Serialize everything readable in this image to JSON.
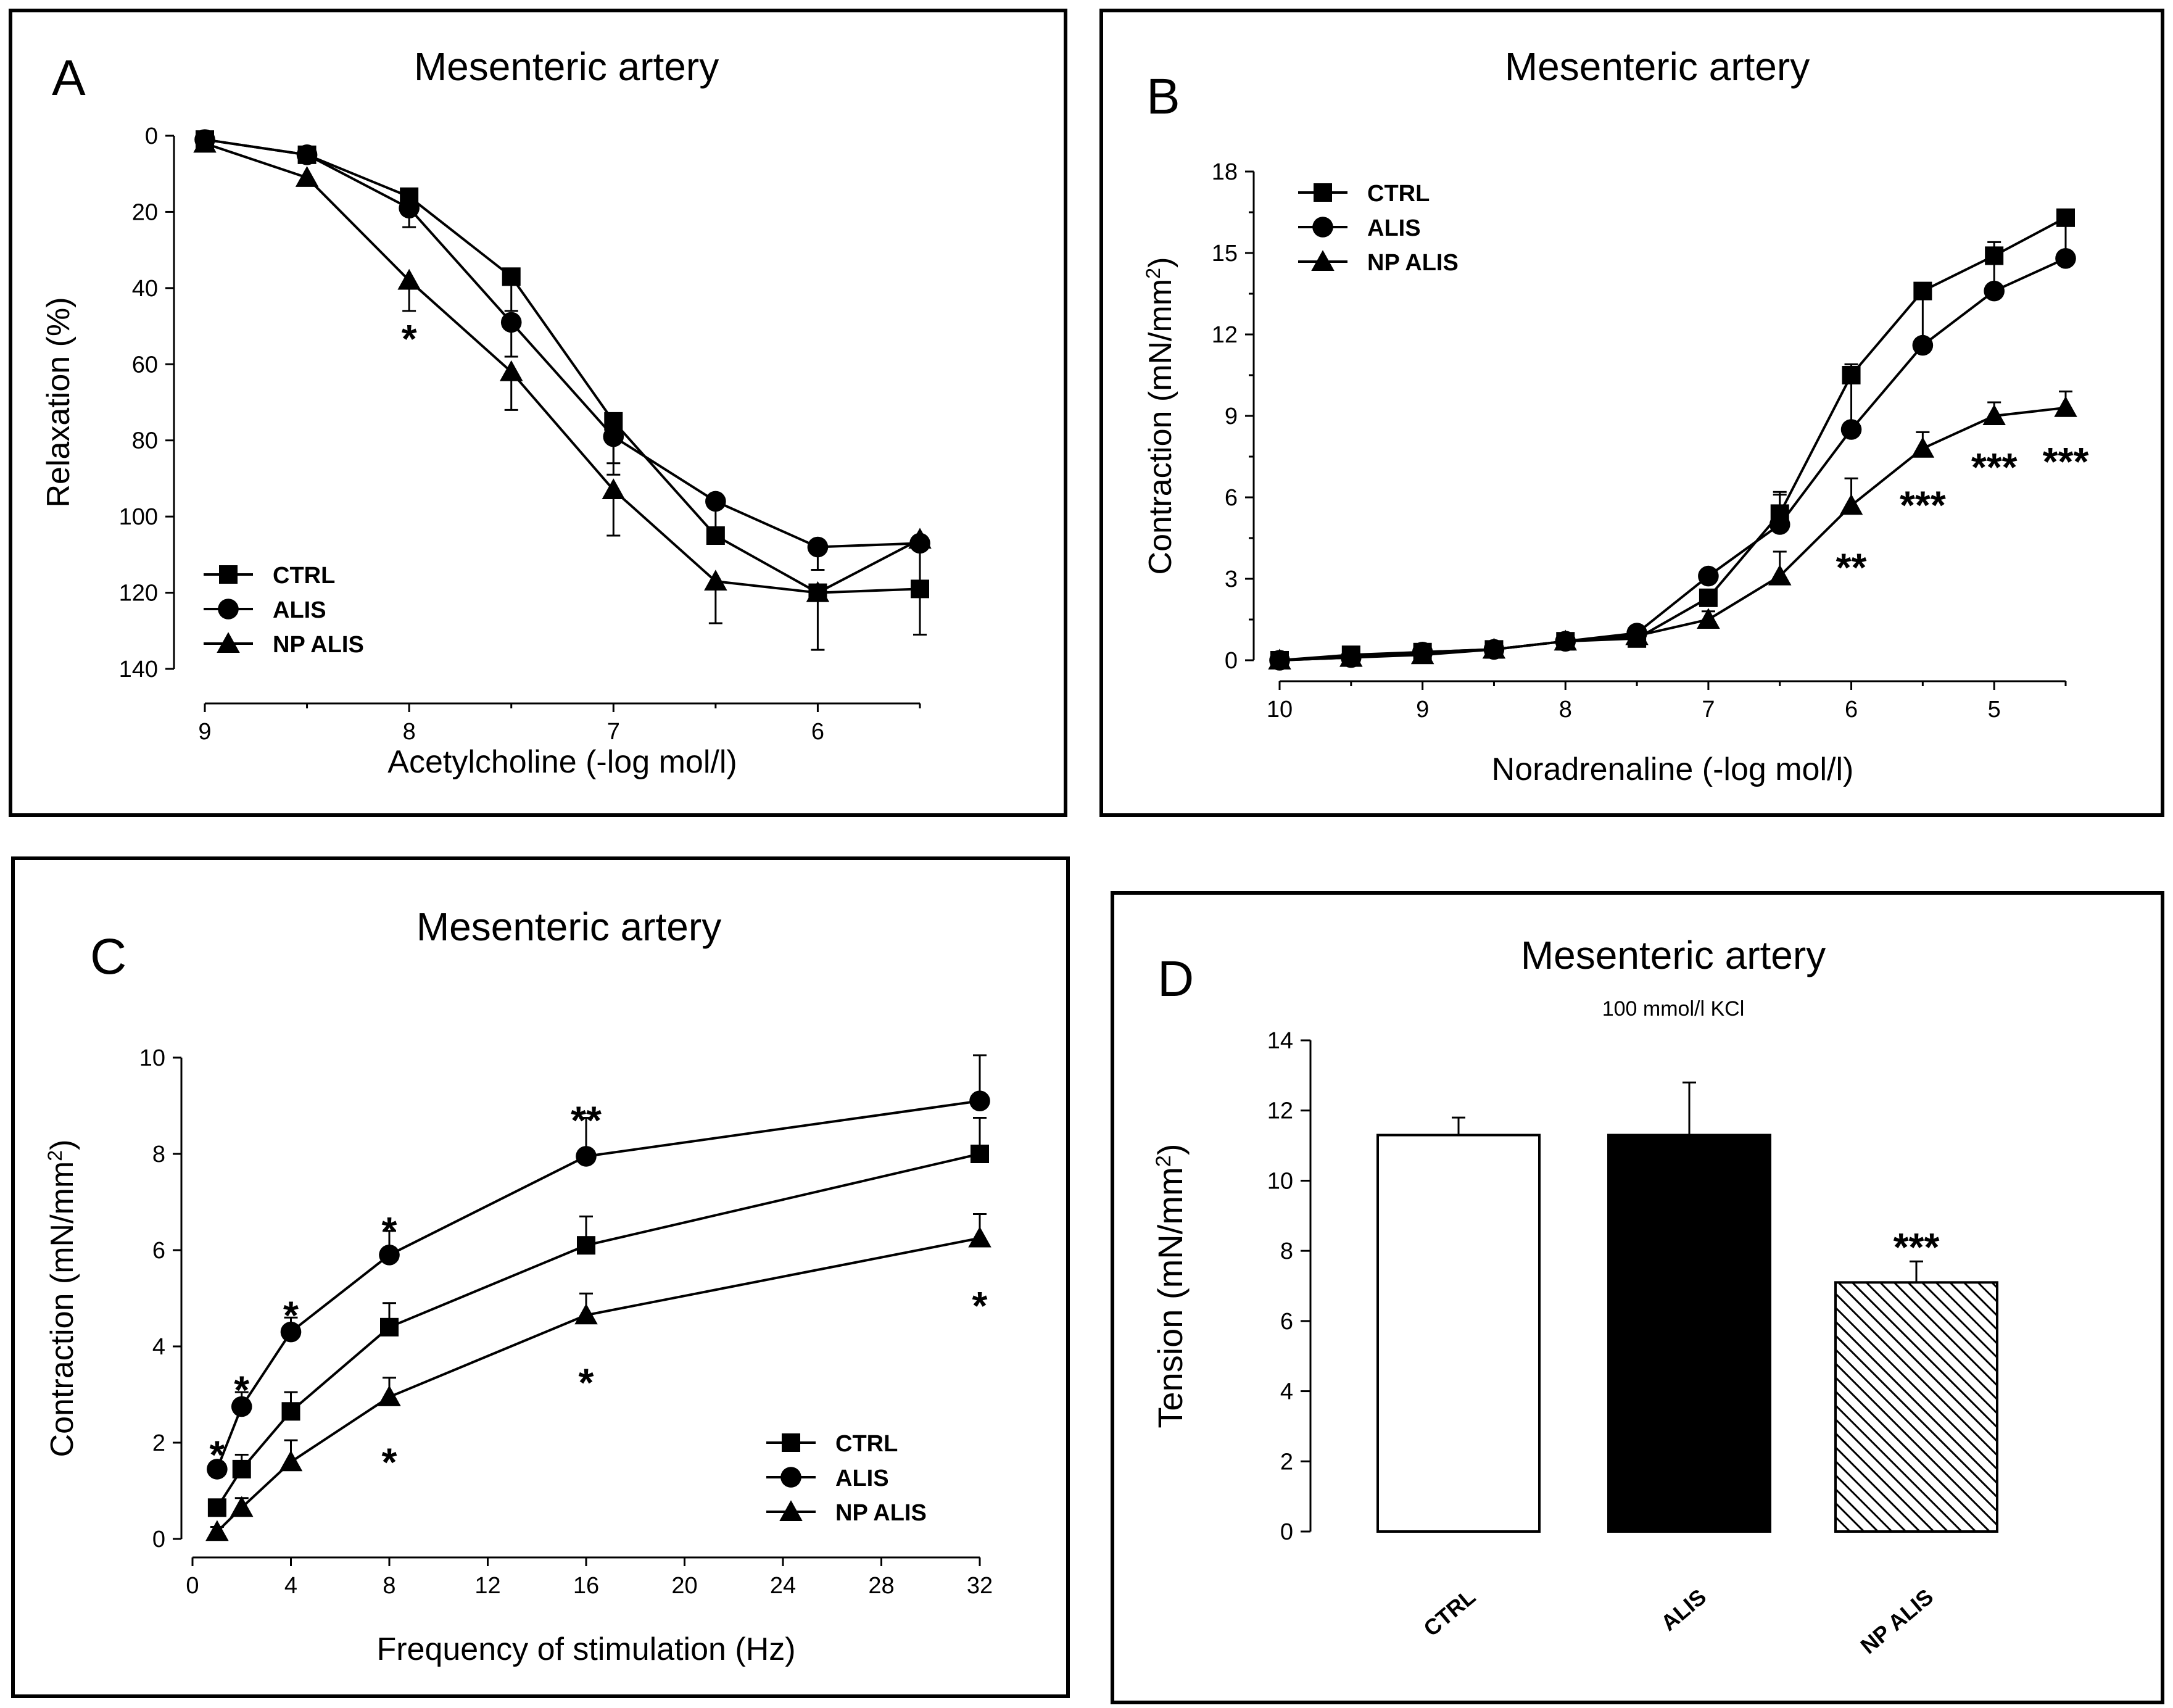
{
  "chart_data": [
    {
      "type": "line",
      "panel_letter": "A",
      "title": "Mesenteric artery",
      "xlabel": "Acetylcholine (-log mol/l)",
      "ylabel": "Relaxation (%)",
      "xlim": [
        9.0,
        5.5
      ],
      "ylim": [
        0,
        140
      ],
      "y_inverted": true,
      "xticks": [
        9,
        8,
        7,
        6
      ],
      "yticks": [
        0,
        20,
        40,
        60,
        80,
        100,
        120,
        140
      ],
      "legend_position": "bottom-left",
      "x": [
        9.0,
        8.5,
        8.0,
        7.5,
        7.0,
        6.5,
        6.0,
        5.5
      ],
      "series": [
        {
          "name": "CTRL",
          "marker": "square",
          "values": [
            1,
            5,
            16,
            37,
            75,
            105,
            120,
            119
          ],
          "errors": [
            0,
            0,
            4,
            9,
            14,
            0,
            0,
            12
          ]
        },
        {
          "name": "ALIS",
          "marker": "circle",
          "values": [
            1,
            5,
            19,
            49,
            79,
            96,
            108,
            107
          ],
          "errors": [
            0,
            2,
            5,
            9,
            7,
            7,
            6,
            10
          ]
        },
        {
          "name": "NP ALIS",
          "marker": "triangle",
          "values": [
            2,
            11,
            38,
            62,
            93,
            117,
            120,
            106
          ],
          "errors": [
            0,
            0,
            8,
            10,
            12,
            11,
            15,
            0
          ]
        }
      ],
      "annotations": [
        {
          "text": "*",
          "x": 8.0,
          "y": 52
        }
      ]
    },
    {
      "type": "line",
      "panel_letter": "B",
      "title": "Mesenteric artery",
      "xlabel": "Noradrenaline (-log mol/l)",
      "ylabel": "Contraction (mN/mm",
      "ylabel_sup": "2",
      "ylabel_end": ")",
      "xlim": [
        10.0,
        4.5
      ],
      "ylim": [
        0,
        18
      ],
      "xticks": [
        10,
        9,
        8,
        7,
        6,
        5
      ],
      "yticks": [
        0,
        3,
        6,
        9,
        12,
        15,
        18
      ],
      "legend_position": "top-left",
      "x": [
        10.0,
        9.5,
        9.0,
        8.5,
        8.0,
        7.5,
        7.0,
        6.5,
        6.0,
        5.5,
        5.0,
        4.5
      ],
      "series": [
        {
          "name": "CTRL",
          "marker": "square",
          "values": [
            0.0,
            0.2,
            0.3,
            0.4,
            0.7,
            0.8,
            2.3,
            5.4,
            10.5,
            13.6,
            14.9,
            16.3
          ],
          "errors": [
            0,
            0,
            0,
            0,
            0,
            0,
            0,
            0.7,
            0.4,
            0,
            0,
            0
          ]
        },
        {
          "name": "ALIS",
          "marker": "circle",
          "values": [
            0.0,
            0.1,
            0.3,
            0.4,
            0.7,
            1.0,
            3.1,
            5.0,
            8.5,
            11.6,
            13.6,
            14.8
          ],
          "errors": [
            0,
            0,
            0,
            0,
            0,
            0,
            0,
            1.2,
            1.8,
            2.1,
            1.8,
            1.5
          ]
        },
        {
          "name": "NP ALIS",
          "marker": "triangle",
          "values": [
            0.0,
            0.1,
            0.2,
            0.4,
            0.7,
            0.9,
            1.5,
            3.1,
            5.7,
            7.8,
            9.0,
            9.3
          ],
          "errors": [
            0,
            0,
            0,
            0,
            0,
            0,
            0.3,
            0.9,
            1.0,
            0.6,
            0.5,
            0.6
          ]
        }
      ],
      "annotations": [
        {
          "text": "**",
          "x": 6.0,
          "y": 3.6
        },
        {
          "text": "***",
          "x": 5.5,
          "y": 5.9
        },
        {
          "text": "***",
          "x": 5.0,
          "y": 7.3
        },
        {
          "text": "***",
          "x": 4.5,
          "y": 7.5
        }
      ]
    },
    {
      "type": "line",
      "panel_letter": "C",
      "title": "Mesenteric artery",
      "xlabel": "Frequency of stimulation (Hz)",
      "ylabel": "Contraction (mN/mm",
      "ylabel_sup": "2",
      "ylabel_end": ")",
      "xlim": [
        0,
        32
      ],
      "ylim": [
        0,
        10
      ],
      "xticks": [
        0,
        4,
        8,
        12,
        16,
        20,
        24,
        28,
        32
      ],
      "yticks": [
        0,
        2,
        4,
        6,
        8,
        10
      ],
      "legend_position": "bottom-right",
      "x": [
        1,
        2,
        4,
        8,
        16,
        32
      ],
      "series": [
        {
          "name": "CTRL",
          "marker": "square",
          "values": [
            0.65,
            1.45,
            2.65,
            4.4,
            6.1,
            8.0
          ],
          "errors": [
            0,
            0.3,
            0.4,
            0.5,
            0.6,
            0.75
          ]
        },
        {
          "name": "ALIS",
          "marker": "circle",
          "values": [
            1.45,
            2.75,
            4.3,
            5.9,
            7.95,
            9.1
          ],
          "errors": [
            0,
            0.3,
            0.3,
            0.5,
            0.8,
            0.95
          ]
        },
        {
          "name": "NP ALIS",
          "marker": "triangle",
          "values": [
            0.15,
            0.65,
            1.6,
            2.95,
            4.65,
            6.25
          ],
          "errors": [
            0.1,
            0.2,
            0.45,
            0.4,
            0.45,
            0.5
          ]
        }
      ],
      "annotations": [
        {
          "text": "*",
          "x": 1,
          "y": 1.85
        },
        {
          "text": "*",
          "x": 2,
          "y": 3.2
        },
        {
          "text": "*",
          "x": 4,
          "y": 4.75
        },
        {
          "text": "*",
          "x": 8,
          "y": 6.5
        },
        {
          "text": "**",
          "x": 16,
          "y": 8.8
        },
        {
          "text": "*",
          "x": 8,
          "y": 1.7
        },
        {
          "text": "*",
          "x": 16,
          "y": 3.35
        },
        {
          "text": "*",
          "x": 32,
          "y": 4.95
        }
      ]
    },
    {
      "type": "bar",
      "panel_letter": "D",
      "title": "Mesenteric artery",
      "subtitle": "100 mmol/l KCl",
      "xlabel": "",
      "ylabel": "Tension (mN/mm",
      "ylabel_sup": "2",
      "ylabel_end": ")",
      "ylim": [
        0,
        14
      ],
      "yticks": [
        0,
        2,
        4,
        6,
        8,
        10,
        12,
        14
      ],
      "categories": [
        "CTRL",
        "ALIS",
        "NP ALIS"
      ],
      "values": [
        11.3,
        11.3,
        7.1
      ],
      "errors": [
        0.5,
        1.5,
        0.6
      ],
      "fills": [
        "white",
        "black",
        "hatched"
      ],
      "annotations": [
        {
          "text": "***",
          "category": "NP ALIS",
          "y": 7.9
        }
      ]
    }
  ]
}
